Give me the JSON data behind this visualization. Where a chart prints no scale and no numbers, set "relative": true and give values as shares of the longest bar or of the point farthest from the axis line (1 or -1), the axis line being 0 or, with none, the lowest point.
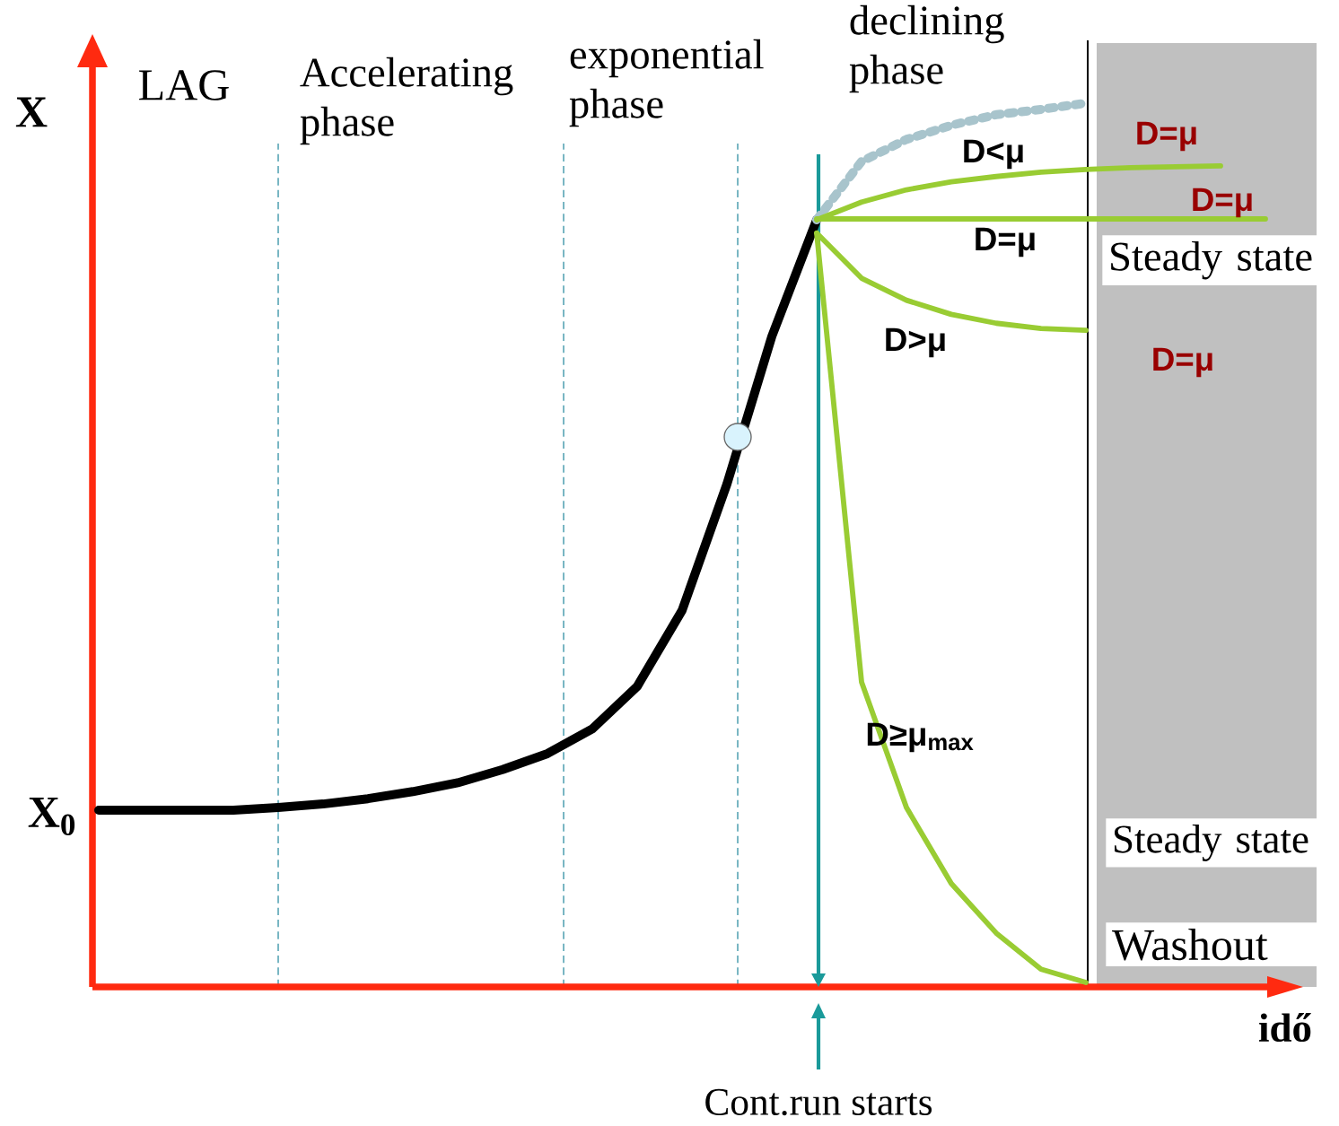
{
  "chart_data": {
    "type": "line",
    "relative": true,
    "xlabel": "idő",
    "ylabel": "X",
    "categories": [
      null,
      null,
      null,
      null,
      null,
      null,
      null,
      null,
      null,
      null,
      null,
      null,
      null,
      null,
      null,
      null,
      null,
      null,
      null,
      null,
      null,
      null,
      null,
      null,
      null,
      null,
      null
    ],
    "series": [
      {
        "color": "#000000",
        "values": [
          0.2,
          0.2,
          0.2,
          0.2,
          0.203,
          0.207,
          0.213,
          0.221,
          0.231,
          0.246,
          0.264,
          0.292,
          0.34,
          0.426,
          0.569,
          0.736,
          0.868,
          null,
          null,
          null,
          null,
          null,
          null,
          null,
          null,
          null,
          null
        ]
      },
      {
        "color": "#a8c4cc",
        "line_style": "dotted",
        "values": [
          null,
          null,
          null,
          null,
          null,
          null,
          null,
          null,
          null,
          null,
          null,
          null,
          null,
          null,
          null,
          null,
          0.868,
          0.934,
          0.959,
          0.975,
          0.987,
          0.993,
          1.0,
          null,
          null,
          null,
          null
        ]
      },
      {
        "color": "#99cc33",
        "values": [
          null,
          null,
          null,
          null,
          null,
          null,
          null,
          null,
          null,
          null,
          null,
          null,
          null,
          null,
          null,
          null,
          0.868,
          0.888,
          0.902,
          0.911,
          0.917,
          0.922,
          0.925,
          0.927,
          0.928,
          0.929,
          null
        ]
      },
      {
        "color": "#99cc33",
        "values": [
          null,
          null,
          null,
          null,
          null,
          null,
          null,
          null,
          null,
          null,
          null,
          null,
          null,
          null,
          null,
          null,
          0.869,
          0.869,
          0.869,
          0.869,
          0.869,
          0.869,
          0.869,
          0.869,
          0.869,
          0.869,
          0.869
        ]
      },
      {
        "color": "#99cc33",
        "values": [
          null,
          null,
          null,
          null,
          null,
          null,
          null,
          null,
          null,
          null,
          null,
          null,
          null,
          null,
          null,
          null,
          0.853,
          0.802,
          0.777,
          0.761,
          0.751,
          0.745,
          0.743,
          null,
          null,
          null,
          null
        ]
      },
      {
        "color": "#99cc33",
        "values": [
          null,
          null,
          null,
          null,
          null,
          null,
          null,
          null,
          null,
          null,
          null,
          null,
          null,
          null,
          null,
          null,
          0.853,
          0.345,
          0.203,
          0.117,
          0.061,
          0.02,
          0.005,
          null,
          null,
          null,
          null
        ]
      }
    ],
    "annotations": [
      "LAG",
      "Accelerating phase",
      "exponential phase",
      "declining phase",
      "Steady state",
      "Steady state",
      "Washout",
      "X$_{0}$",
      "D<μ",
      "D=μ",
      "D>μ",
      "D≥μ$_{max}$",
      "D=μ",
      "D=μ",
      "D=μ",
      "Cont.run starts"
    ]
  }
}
